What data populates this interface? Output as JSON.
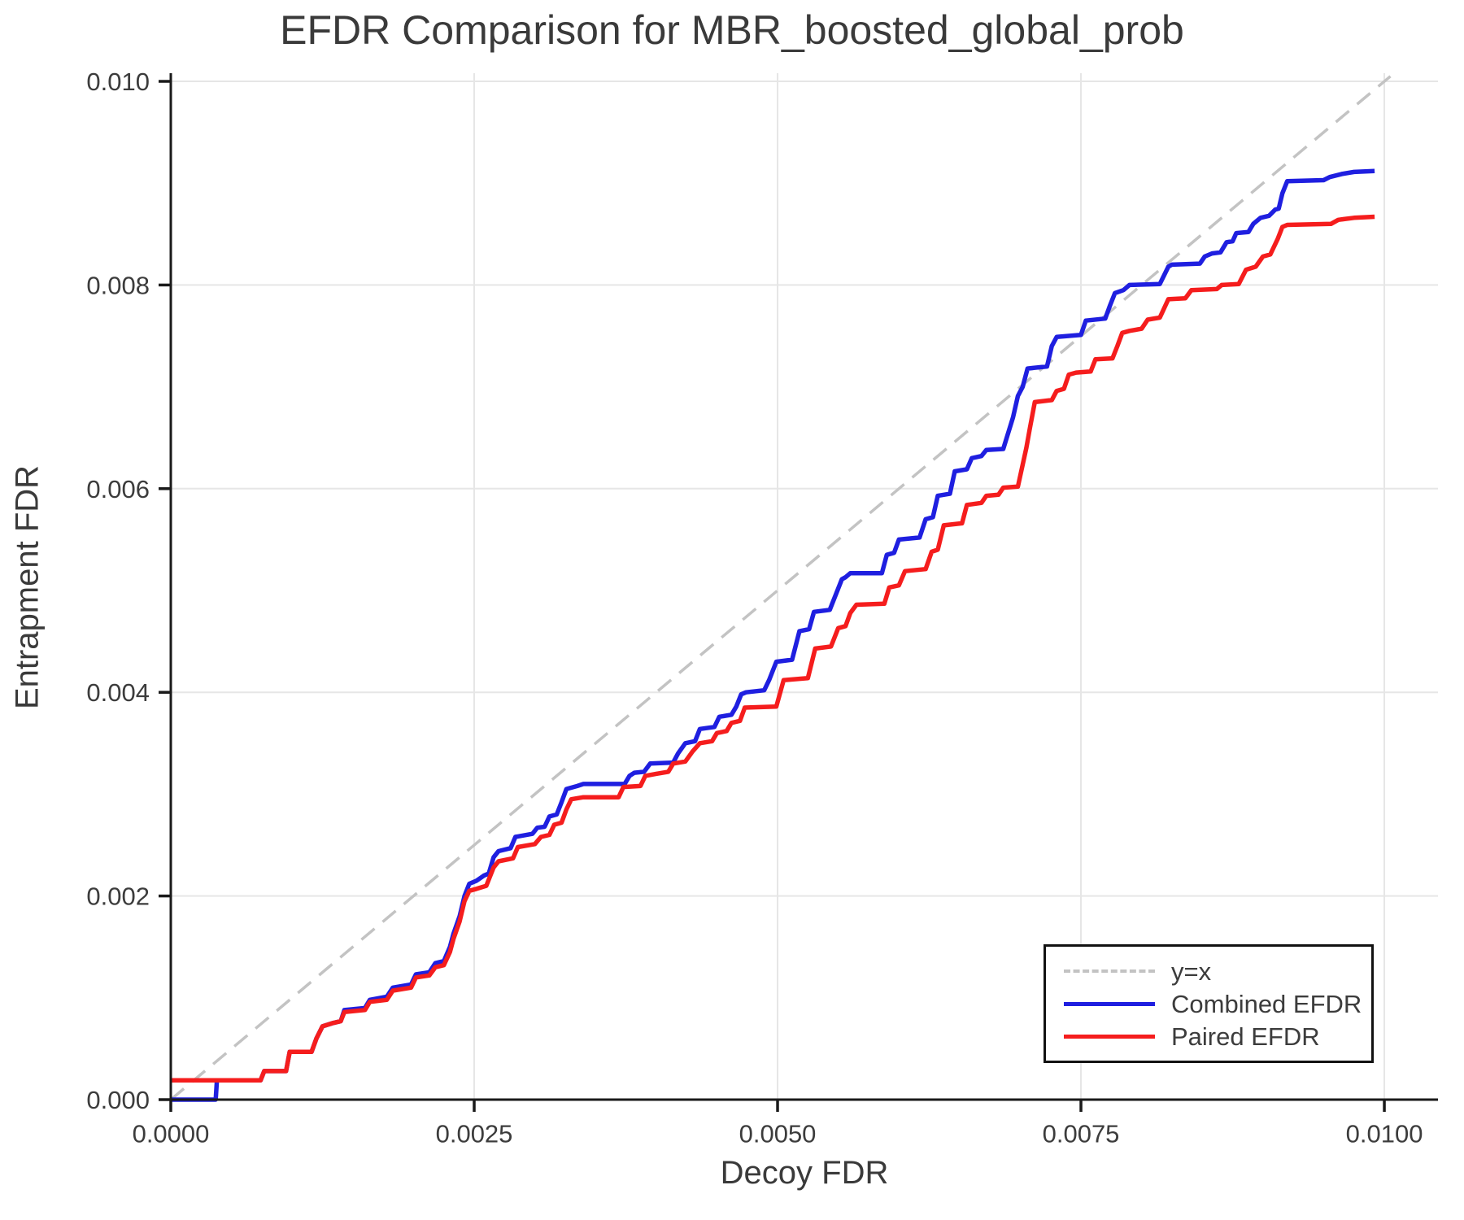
{
  "chart_data": {
    "type": "line",
    "title": "EFDR Comparison for MBR_boosted_global_prob",
    "xlabel": "Decoy FDR",
    "ylabel": "Entrapment FDR",
    "xlim": [
      0,
      0.010442
    ],
    "ylim": [
      0,
      0.01008
    ],
    "grid": true,
    "legend_position": "lower right",
    "x_ticks": [
      0.0,
      0.0025,
      0.005,
      0.0075,
      0.01
    ],
    "x_tick_labels": [
      "0.0000",
      "0.0025",
      "0.0050",
      "0.0075",
      "0.0100"
    ],
    "y_ticks": [
      0.0,
      0.002,
      0.004,
      0.006,
      0.008,
      0.01
    ],
    "y_tick_labels": [
      "0.000",
      "0.002",
      "0.004",
      "0.006",
      "0.008",
      "0.010"
    ],
    "colors": {
      "identity": "#c3c3c3",
      "combined": "#1f1fe0",
      "paired": "#f51d1d",
      "grid": "#e6e6e6",
      "spine": "#1a1a1a",
      "text": "#3c3c3c"
    },
    "series": [
      {
        "name": "y=x",
        "style": "dashed",
        "color": "#c3c3c3",
        "points": [
          [
            0.0,
            0.0
          ],
          [
            0.01005,
            0.01005
          ]
        ]
      },
      {
        "name": "Combined EFDR",
        "style": "solid",
        "color": "#1f1fe0",
        "points": [
          [
            0.0,
            0.0
          ],
          [
            0.00037,
            0.0
          ],
          [
            0.00038,
            0.00019
          ],
          [
            0.00074,
            0.00019
          ],
          [
            0.00077,
            0.00028
          ],
          [
            0.00095,
            0.00028
          ],
          [
            0.00098,
            0.00047
          ],
          [
            0.00116,
            0.00047
          ],
          [
            0.0012,
            0.0006
          ],
          [
            0.00125,
            0.00072
          ],
          [
            0.00133,
            0.00075
          ],
          [
            0.0014,
            0.00077
          ],
          [
            0.00143,
            0.00088
          ],
          [
            0.0016,
            0.0009
          ],
          [
            0.00164,
            0.00098
          ],
          [
            0.00178,
            0.00101
          ],
          [
            0.00183,
            0.0011
          ],
          [
            0.00198,
            0.00113
          ],
          [
            0.00202,
            0.00123
          ],
          [
            0.00213,
            0.00125
          ],
          [
            0.00218,
            0.00134
          ],
          [
            0.00225,
            0.00136
          ],
          [
            0.0023,
            0.0015
          ],
          [
            0.00233,
            0.00163
          ],
          [
            0.00238,
            0.0018
          ],
          [
            0.00242,
            0.002
          ],
          [
            0.00246,
            0.00212
          ],
          [
            0.00252,
            0.00215
          ],
          [
            0.00258,
            0.0022
          ],
          [
            0.00262,
            0.00222
          ],
          [
            0.00266,
            0.00238
          ],
          [
            0.0027,
            0.00244
          ],
          [
            0.0028,
            0.00247
          ],
          [
            0.00284,
            0.00258
          ],
          [
            0.00298,
            0.00261
          ],
          [
            0.00302,
            0.00267
          ],
          [
            0.00308,
            0.00268
          ],
          [
            0.00312,
            0.00278
          ],
          [
            0.00318,
            0.0028
          ],
          [
            0.00322,
            0.00292
          ],
          [
            0.00326,
            0.00305
          ],
          [
            0.00335,
            0.00308
          ],
          [
            0.0034,
            0.0031
          ],
          [
            0.00374,
            0.0031
          ],
          [
            0.00378,
            0.00318
          ],
          [
            0.00382,
            0.00321
          ],
          [
            0.0039,
            0.00322
          ],
          [
            0.00395,
            0.0033
          ],
          [
            0.00414,
            0.00331
          ],
          [
            0.00418,
            0.0034
          ],
          [
            0.00424,
            0.0035
          ],
          [
            0.00432,
            0.00352
          ],
          [
            0.00436,
            0.00364
          ],
          [
            0.00448,
            0.00366
          ],
          [
            0.00452,
            0.00376
          ],
          [
            0.00462,
            0.00378
          ],
          [
            0.00466,
            0.00386
          ],
          [
            0.0047,
            0.00398
          ],
          [
            0.00474,
            0.004
          ],
          [
            0.00489,
            0.00402
          ],
          [
            0.00493,
            0.00412
          ],
          [
            0.00499,
            0.0043
          ],
          [
            0.00512,
            0.00432
          ],
          [
            0.00518,
            0.0046
          ],
          [
            0.00526,
            0.00462
          ],
          [
            0.0053,
            0.00479
          ],
          [
            0.00543,
            0.00481
          ],
          [
            0.00553,
            0.00511
          ],
          [
            0.00556,
            0.00513
          ],
          [
            0.0056,
            0.00517
          ],
          [
            0.00586,
            0.00517
          ],
          [
            0.0059,
            0.00535
          ],
          [
            0.00596,
            0.00537
          ],
          [
            0.006,
            0.0055
          ],
          [
            0.00617,
            0.00552
          ],
          [
            0.00622,
            0.0057
          ],
          [
            0.00628,
            0.00572
          ],
          [
            0.00632,
            0.00593
          ],
          [
            0.00642,
            0.00595
          ],
          [
            0.00646,
            0.00617
          ],
          [
            0.00656,
            0.00619
          ],
          [
            0.0066,
            0.0063
          ],
          [
            0.00668,
            0.00632
          ],
          [
            0.00672,
            0.00638
          ],
          [
            0.00686,
            0.00639
          ],
          [
            0.00694,
            0.0067
          ],
          [
            0.00698,
            0.00691
          ],
          [
            0.00702,
            0.007
          ],
          [
            0.00706,
            0.00718
          ],
          [
            0.00722,
            0.0072
          ],
          [
            0.00726,
            0.0074
          ],
          [
            0.0073,
            0.00749
          ],
          [
            0.0075,
            0.00751
          ],
          [
            0.00754,
            0.00765
          ],
          [
            0.0077,
            0.00767
          ],
          [
            0.00774,
            0.0078
          ],
          [
            0.00778,
            0.00792
          ],
          [
            0.00785,
            0.00795
          ],
          [
            0.0079,
            0.008
          ],
          [
            0.00815,
            0.00801
          ],
          [
            0.00822,
            0.00818
          ],
          [
            0.00825,
            0.0082
          ],
          [
            0.00848,
            0.00821
          ],
          [
            0.00852,
            0.00828
          ],
          [
            0.00858,
            0.00831
          ],
          [
            0.00865,
            0.00832
          ],
          [
            0.0087,
            0.00842
          ],
          [
            0.00875,
            0.00843
          ],
          [
            0.00878,
            0.00851
          ],
          [
            0.00888,
            0.00852
          ],
          [
            0.00892,
            0.0086
          ],
          [
            0.00898,
            0.00866
          ],
          [
            0.00905,
            0.00868
          ],
          [
            0.0091,
            0.00874
          ],
          [
            0.00913,
            0.00875
          ],
          [
            0.00916,
            0.0089
          ],
          [
            0.0092,
            0.00902
          ],
          [
            0.0095,
            0.00903
          ],
          [
            0.00955,
            0.00906
          ],
          [
            0.00965,
            0.00909
          ],
          [
            0.00975,
            0.00911
          ],
          [
            0.00992,
            0.00912
          ]
        ]
      },
      {
        "name": "Paired EFDR",
        "style": "solid",
        "color": "#f51d1d",
        "points": [
          [
            0.0,
            0.00019
          ],
          [
            0.00074,
            0.00019
          ],
          [
            0.00077,
            0.00028
          ],
          [
            0.00095,
            0.00028
          ],
          [
            0.00098,
            0.00047
          ],
          [
            0.00116,
            0.00047
          ],
          [
            0.0012,
            0.0006
          ],
          [
            0.00125,
            0.00072
          ],
          [
            0.00133,
            0.00075
          ],
          [
            0.0014,
            0.00077
          ],
          [
            0.00143,
            0.00086
          ],
          [
            0.0016,
            0.00088
          ],
          [
            0.00164,
            0.00096
          ],
          [
            0.00178,
            0.00098
          ],
          [
            0.00183,
            0.00107
          ],
          [
            0.00198,
            0.0011
          ],
          [
            0.00202,
            0.0012
          ],
          [
            0.00213,
            0.00122
          ],
          [
            0.00218,
            0.0013
          ],
          [
            0.00225,
            0.00132
          ],
          [
            0.0023,
            0.00145
          ],
          [
            0.00233,
            0.00158
          ],
          [
            0.00238,
            0.00175
          ],
          [
            0.00242,
            0.00195
          ],
          [
            0.00246,
            0.00205
          ],
          [
            0.00252,
            0.00207
          ],
          [
            0.0026,
            0.0021
          ],
          [
            0.00266,
            0.00228
          ],
          [
            0.0027,
            0.00234
          ],
          [
            0.00282,
            0.00237
          ],
          [
            0.00286,
            0.00248
          ],
          [
            0.003,
            0.00251
          ],
          [
            0.00305,
            0.00258
          ],
          [
            0.00312,
            0.0026
          ],
          [
            0.00316,
            0.0027
          ],
          [
            0.00322,
            0.00272
          ],
          [
            0.00326,
            0.00285
          ],
          [
            0.0033,
            0.00295
          ],
          [
            0.0034,
            0.00297
          ],
          [
            0.00369,
            0.00297
          ],
          [
            0.00373,
            0.00307
          ],
          [
            0.00387,
            0.00308
          ],
          [
            0.00391,
            0.00318
          ],
          [
            0.004,
            0.0032
          ],
          [
            0.0041,
            0.00322
          ],
          [
            0.00414,
            0.0033
          ],
          [
            0.00424,
            0.00332
          ],
          [
            0.0043,
            0.00342
          ],
          [
            0.00436,
            0.0035
          ],
          [
            0.00446,
            0.00352
          ],
          [
            0.0045,
            0.0036
          ],
          [
            0.00458,
            0.00362
          ],
          [
            0.00462,
            0.0037
          ],
          [
            0.00469,
            0.00372
          ],
          [
            0.00473,
            0.00385
          ],
          [
            0.00499,
            0.00386
          ],
          [
            0.00505,
            0.00412
          ],
          [
            0.00525,
            0.00414
          ],
          [
            0.00531,
            0.00443
          ],
          [
            0.00544,
            0.00445
          ],
          [
            0.0055,
            0.00463
          ],
          [
            0.00556,
            0.00465
          ],
          [
            0.0056,
            0.00478
          ],
          [
            0.00565,
            0.00486
          ],
          [
            0.00588,
            0.00487
          ],
          [
            0.00592,
            0.00503
          ],
          [
            0.006,
            0.00505
          ],
          [
            0.00605,
            0.00519
          ],
          [
            0.00622,
            0.00521
          ],
          [
            0.00627,
            0.00538
          ],
          [
            0.00632,
            0.0054
          ],
          [
            0.00637,
            0.00564
          ],
          [
            0.00652,
            0.00566
          ],
          [
            0.00656,
            0.00584
          ],
          [
            0.00668,
            0.00586
          ],
          [
            0.00672,
            0.00593
          ],
          [
            0.00682,
            0.00594
          ],
          [
            0.00686,
            0.00601
          ],
          [
            0.00698,
            0.00602
          ],
          [
            0.00705,
            0.0064
          ],
          [
            0.00708,
            0.0066
          ],
          [
            0.00712,
            0.00685
          ],
          [
            0.00726,
            0.00687
          ],
          [
            0.0073,
            0.00696
          ],
          [
            0.00736,
            0.00698
          ],
          [
            0.0074,
            0.00712
          ],
          [
            0.00746,
            0.00714
          ],
          [
            0.00758,
            0.00715
          ],
          [
            0.00762,
            0.00727
          ],
          [
            0.00776,
            0.00728
          ],
          [
            0.0078,
            0.0074
          ],
          [
            0.00784,
            0.00753
          ],
          [
            0.0079,
            0.00755
          ],
          [
            0.008,
            0.00757
          ],
          [
            0.00805,
            0.00766
          ],
          [
            0.00815,
            0.00768
          ],
          [
            0.00822,
            0.00786
          ],
          [
            0.00836,
            0.00787
          ],
          [
            0.00841,
            0.00795
          ],
          [
            0.00862,
            0.00796
          ],
          [
            0.00866,
            0.008
          ],
          [
            0.0088,
            0.00801
          ],
          [
            0.00886,
            0.00815
          ],
          [
            0.00894,
            0.00818
          ],
          [
            0.009,
            0.00828
          ],
          [
            0.00906,
            0.0083
          ],
          [
            0.00912,
            0.00845
          ],
          [
            0.00916,
            0.00857
          ],
          [
            0.0092,
            0.00859
          ],
          [
            0.00956,
            0.0086
          ],
          [
            0.00962,
            0.00864
          ],
          [
            0.00975,
            0.00866
          ],
          [
            0.00992,
            0.00867
          ]
        ]
      }
    ]
  }
}
